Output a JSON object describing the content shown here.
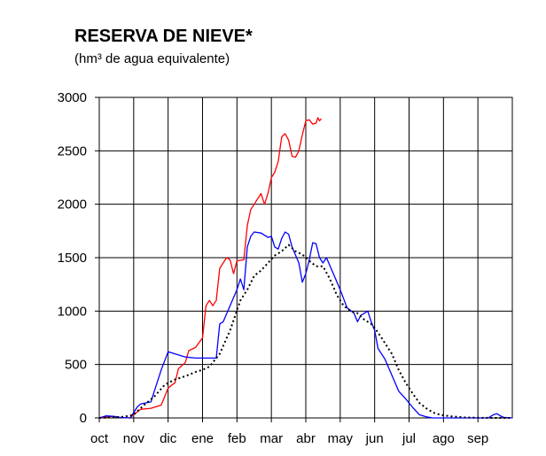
{
  "chart_data": {
    "type": "line",
    "title": "RESERVA DE NIEVE*",
    "subtitle": "(hm³ de agua equivalente)",
    "xlabel": "",
    "ylabel": "",
    "ylim": [
      0,
      3000
    ],
    "yticks": [
      0,
      500,
      1000,
      1500,
      2000,
      2500,
      3000
    ],
    "categories": [
      "oct",
      "nov",
      "dic",
      "ene",
      "feb",
      "mar",
      "abr",
      "may",
      "jun",
      "jul",
      "ago",
      "sep"
    ],
    "xlim": [
      0,
      12
    ],
    "grid": true,
    "legend": "none",
    "series": [
      {
        "color": "#ff0000",
        "style": "solid",
        "points": [
          [
            0.0,
            0
          ],
          [
            0.2,
            10
          ],
          [
            0.4,
            15
          ],
          [
            0.6,
            5
          ],
          [
            0.9,
            0
          ],
          [
            1.0,
            30
          ],
          [
            1.2,
            80
          ],
          [
            1.5,
            90
          ],
          [
            1.8,
            120
          ],
          [
            2.0,
            280
          ],
          [
            2.2,
            330
          ],
          [
            2.3,
            460
          ],
          [
            2.5,
            520
          ],
          [
            2.6,
            630
          ],
          [
            2.8,
            660
          ],
          [
            3.0,
            750
          ],
          [
            3.1,
            1050
          ],
          [
            3.2,
            1100
          ],
          [
            3.3,
            1050
          ],
          [
            3.4,
            1100
          ],
          [
            3.5,
            1400
          ],
          [
            3.6,
            1450
          ],
          [
            3.7,
            1500
          ],
          [
            3.8,
            1480
          ],
          [
            3.9,
            1350
          ],
          [
            4.0,
            1470
          ],
          [
            4.2,
            1480
          ],
          [
            4.3,
            1800
          ],
          [
            4.4,
            1950
          ],
          [
            4.5,
            2000
          ],
          [
            4.6,
            2050
          ],
          [
            4.7,
            2100
          ],
          [
            4.8,
            2000
          ],
          [
            4.9,
            2100
          ],
          [
            5.0,
            2250
          ],
          [
            5.1,
            2300
          ],
          [
            5.2,
            2400
          ],
          [
            5.3,
            2630
          ],
          [
            5.4,
            2660
          ],
          [
            5.5,
            2600
          ],
          [
            5.6,
            2450
          ],
          [
            5.7,
            2440
          ],
          [
            5.8,
            2500
          ],
          [
            5.9,
            2650
          ],
          [
            6.0,
            2780
          ],
          [
            6.1,
            2790
          ],
          [
            6.2,
            2750
          ],
          [
            6.3,
            2760
          ],
          [
            6.35,
            2810
          ],
          [
            6.4,
            2780
          ],
          [
            6.45,
            2800
          ]
        ]
      },
      {
        "color": "#0000ff",
        "style": "solid",
        "points": [
          [
            0.0,
            0
          ],
          [
            0.2,
            20
          ],
          [
            0.4,
            15
          ],
          [
            0.6,
            5
          ],
          [
            0.9,
            0
          ],
          [
            1.1,
            100
          ],
          [
            1.2,
            130
          ],
          [
            1.5,
            150
          ],
          [
            1.6,
            250
          ],
          [
            1.8,
            450
          ],
          [
            2.0,
            620
          ],
          [
            2.2,
            600
          ],
          [
            2.5,
            570
          ],
          [
            2.8,
            560
          ],
          [
            3.0,
            560
          ],
          [
            3.2,
            560
          ],
          [
            3.4,
            560
          ],
          [
            3.5,
            880
          ],
          [
            3.6,
            900
          ],
          [
            3.8,
            1050
          ],
          [
            4.0,
            1200
          ],
          [
            4.1,
            1300
          ],
          [
            4.2,
            1200
          ],
          [
            4.3,
            1600
          ],
          [
            4.4,
            1700
          ],
          [
            4.5,
            1740
          ],
          [
            4.7,
            1730
          ],
          [
            4.9,
            1690
          ],
          [
            5.0,
            1700
          ],
          [
            5.1,
            1600
          ],
          [
            5.2,
            1580
          ],
          [
            5.3,
            1680
          ],
          [
            5.4,
            1740
          ],
          [
            5.5,
            1720
          ],
          [
            5.6,
            1600
          ],
          [
            5.8,
            1450
          ],
          [
            5.9,
            1270
          ],
          [
            6.0,
            1350
          ],
          [
            6.1,
            1480
          ],
          [
            6.2,
            1640
          ],
          [
            6.3,
            1630
          ],
          [
            6.4,
            1500
          ],
          [
            6.5,
            1450
          ],
          [
            6.6,
            1500
          ],
          [
            6.8,
            1350
          ],
          [
            7.0,
            1200
          ],
          [
            7.2,
            1030
          ],
          [
            7.4,
            980
          ],
          [
            7.5,
            900
          ],
          [
            7.6,
            960
          ],
          [
            7.8,
            1000
          ],
          [
            7.9,
            900
          ],
          [
            8.0,
            820
          ],
          [
            8.1,
            650
          ],
          [
            8.3,
            550
          ],
          [
            8.5,
            400
          ],
          [
            8.7,
            250
          ],
          [
            8.9,
            180
          ],
          [
            9.1,
            100
          ],
          [
            9.3,
            30
          ],
          [
            9.5,
            10
          ],
          [
            9.7,
            0
          ],
          [
            10.5,
            0
          ],
          [
            11.0,
            0
          ],
          [
            11.3,
            0
          ],
          [
            11.45,
            30
          ],
          [
            11.55,
            40
          ],
          [
            11.65,
            20
          ],
          [
            11.75,
            5
          ],
          [
            12.0,
            0
          ]
        ]
      },
      {
        "color": "#000000",
        "style": "dotted",
        "points": [
          [
            0.0,
            0
          ],
          [
            0.3,
            5
          ],
          [
            0.7,
            10
          ],
          [
            1.0,
            30
          ],
          [
            1.3,
            120
          ],
          [
            1.6,
            200
          ],
          [
            1.9,
            310
          ],
          [
            2.2,
            360
          ],
          [
            2.5,
            390
          ],
          [
            2.8,
            430
          ],
          [
            3.0,
            450
          ],
          [
            3.2,
            480
          ],
          [
            3.5,
            600
          ],
          [
            3.8,
            820
          ],
          [
            4.1,
            1100
          ],
          [
            4.3,
            1200
          ],
          [
            4.5,
            1330
          ],
          [
            4.7,
            1380
          ],
          [
            4.9,
            1450
          ],
          [
            5.1,
            1520
          ],
          [
            5.3,
            1560
          ],
          [
            5.5,
            1620
          ],
          [
            5.7,
            1560
          ],
          [
            5.9,
            1530
          ],
          [
            6.1,
            1470
          ],
          [
            6.3,
            1420
          ],
          [
            6.5,
            1420
          ],
          [
            6.7,
            1300
          ],
          [
            6.9,
            1150
          ],
          [
            7.1,
            1050
          ],
          [
            7.3,
            1000
          ],
          [
            7.5,
            980
          ],
          [
            7.7,
            920
          ],
          [
            7.9,
            880
          ],
          [
            8.1,
            800
          ],
          [
            8.3,
            700
          ],
          [
            8.5,
            600
          ],
          [
            8.7,
            450
          ],
          [
            8.9,
            330
          ],
          [
            9.1,
            230
          ],
          [
            9.3,
            140
          ],
          [
            9.5,
            90
          ],
          [
            9.7,
            50
          ],
          [
            9.9,
            30
          ],
          [
            10.2,
            15
          ],
          [
            10.6,
            5
          ],
          [
            11.0,
            2
          ],
          [
            11.5,
            0
          ],
          [
            12.0,
            0
          ]
        ]
      }
    ]
  }
}
